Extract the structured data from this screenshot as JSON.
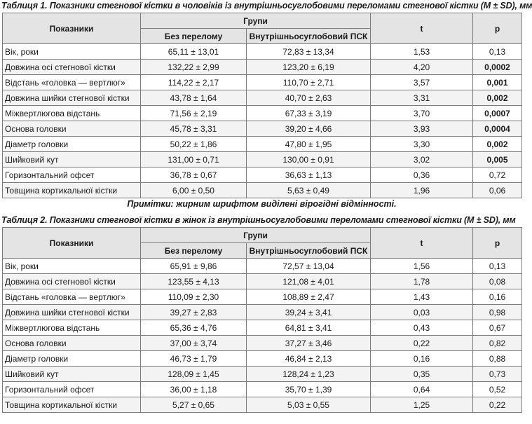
{
  "table1": {
    "caption": "Таблиця 1. Показники стегнової кістки в чоловіків із внутрішньосуглобовими переломами стегнової кістки (M ± SD), мм",
    "header": {
      "param": "Показники",
      "groups": "Групи",
      "group1": "Без перелому",
      "group2": "Внутрішньосуглобовий ПСК",
      "t": "t",
      "p": "p"
    },
    "rows": [
      {
        "name": "Вік, роки",
        "g1": "65,11 ± 13,01",
        "g2": "72,83 ± 13,34",
        "t": "1,53",
        "p": "0,13",
        "bold": false
      },
      {
        "name": "Довжина осі стегнової кістки",
        "g1": "132,22 ± 2,99",
        "g2": "123,20 ± 6,19",
        "t": "4,20",
        "p": "0,0002",
        "bold": true
      },
      {
        "name": "Відстань «головка — вертлюг»",
        "g1": "114,22 ± 2,17",
        "g2": "110,70 ± 2,71",
        "t": "3,57",
        "p": "0,001",
        "bold": true
      },
      {
        "name": "Довжина шийки стегнової кістки",
        "g1": "43,78 ± 1,64",
        "g2": "40,70 ± 2,63",
        "t": "3,31",
        "p": "0,002",
        "bold": true
      },
      {
        "name": "Міжвертлюгова відстань",
        "g1": "71,56 ± 2,19",
        "g2": "67,33 ± 3,19",
        "t": "3,70",
        "p": "0,0007",
        "bold": true
      },
      {
        "name": "Основа головки",
        "g1": "45,78 ± 3,31",
        "g2": "39,20 ± 4,66",
        "t": "3,93",
        "p": "0,0004",
        "bold": true
      },
      {
        "name": "Діаметр головки",
        "g1": "50,22 ± 1,86",
        "g2": "47,80 ± 1,95",
        "t": "3,30",
        "p": "0,002",
        "bold": true
      },
      {
        "name": "Шийковий кут",
        "g1": "131,00 ± 0,71",
        "g2": "130,00 ± 0,91",
        "t": "3,02",
        "p": "0,005",
        "bold": true
      },
      {
        "name": "Горизонтальний офсет",
        "g1": "36,78 ± 0,67",
        "g2": "36,63 ± 1,13",
        "t": "0,36",
        "p": "0,72",
        "bold": false
      },
      {
        "name": "Товщина кортикальної кістки",
        "g1": "6,00 ± 0,50",
        "g2": "5,63 ± 0,49",
        "t": "1,96",
        "p": "0,06",
        "bold": false
      }
    ],
    "note": "Примітки: жирним шрифтом виділені вірогідні відмінності."
  },
  "table2": {
    "caption": "Таблиця 2. Показники стегнової кістки в жінок із внутрішньосуглобовими переломами стегнової кістки (M ± SD), мм",
    "header": {
      "param": "Показники",
      "groups": "Групи",
      "group1": "Без перелому",
      "group2": "Внутрішньосуглобовий ПСК",
      "t": "t",
      "p": "p"
    },
    "rows": [
      {
        "name": "Вік, роки",
        "g1": "65,91 ± 9,86",
        "g2": "72,57 ± 13,04",
        "t": "1,56",
        "p": "0,13",
        "bold": false
      },
      {
        "name": "Довжина осі стегнової кістки",
        "g1": "123,55 ± 4,13",
        "g2": "121,08 ± 4,01",
        "t": "1,78",
        "p": "0,08",
        "bold": false
      },
      {
        "name": "Відстань «головка — вертлюг»",
        "g1": "110,09 ± 2,30",
        "g2": "108,89 ± 2,47",
        "t": "1,43",
        "p": "0,16",
        "bold": false
      },
      {
        "name": "Довжина шийки стегнової кістки",
        "g1": "39,27 ± 2,83",
        "g2": "39,24 ± 3,41",
        "t": "0,03",
        "p": "0,98",
        "bold": false
      },
      {
        "name": "Міжвертлюгова відстань",
        "g1": "65,36 ± 4,76",
        "g2": "64,81 ± 3,41",
        "t": "0,43",
        "p": "0,67",
        "bold": false
      },
      {
        "name": "Основа головки",
        "g1": "37,00 ± 3,74",
        "g2": "37,27 ± 3,46",
        "t": "0,22",
        "p": "0,82",
        "bold": false
      },
      {
        "name": "Діаметр головки",
        "g1": "46,73 ± 1,79",
        "g2": "46,84 ± 2,13",
        "t": "0,16",
        "p": "0,88",
        "bold": false
      },
      {
        "name": "Шийковий кут",
        "g1": "128,09 ± 1,45",
        "g2": "128,24 ± 1,23",
        "t": "0,35",
        "p": "0,73",
        "bold": false
      },
      {
        "name": "Горизонтальний офсет",
        "g1": "36,00 ± 1,18",
        "g2": "35,70 ± 1,39",
        "t": "0,64",
        "p": "0,52",
        "bold": false
      },
      {
        "name": "Товщина кортикальної кістки",
        "g1": "5,27 ± 0,65",
        "g2": "5,03 ± 0,55",
        "t": "1,25",
        "p": "0,22",
        "bold": false
      }
    ]
  }
}
